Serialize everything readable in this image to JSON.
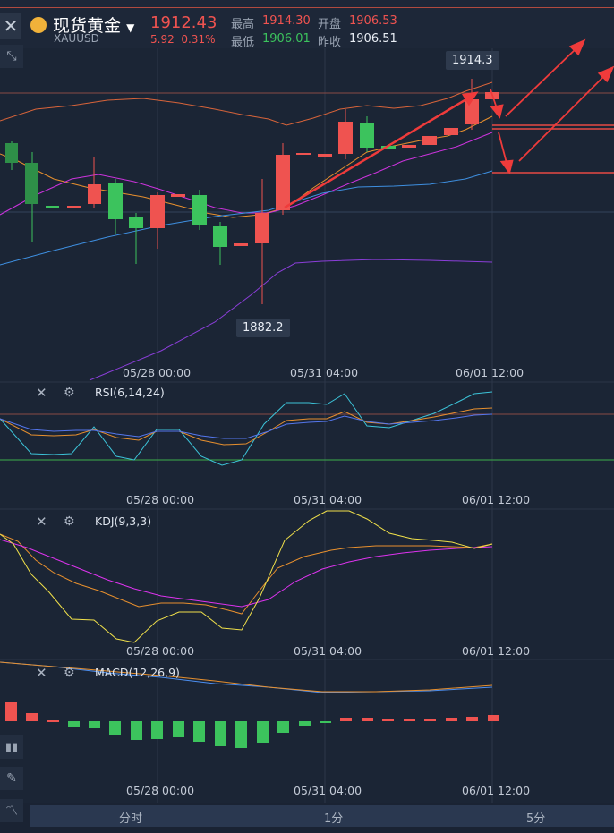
{
  "header": {
    "title": "现货黄金",
    "symbol": "XAUUSD",
    "price": "1912.43",
    "change": "5.92",
    "change_pct": "0.31%",
    "high_label": "最高",
    "high_value": "1914.30",
    "open_label": "开盘",
    "open_value": "1906.53",
    "low_label": "最低",
    "low_value": "1906.01",
    "prev_close_label": "昨收",
    "prev_close_value": "1906.51"
  },
  "main_chart": {
    "high_marker": "1914.3",
    "low_marker": "1882.2",
    "dates": [
      "05/28 00:00",
      "05/31 04:00",
      "06/01 12:00"
    ]
  },
  "indicators": {
    "rsi": {
      "label": "RSI(6,14,24)",
      "dates": [
        "05/28 00:00",
        "05/31 04:00",
        "06/01 12:00"
      ]
    },
    "kdj": {
      "label": "KDJ(9,3,3)",
      "dates": [
        "05/28 00:00",
        "05/31 04:00",
        "06/01 12:00"
      ]
    },
    "macd": {
      "label": "MACD(12,26,9)",
      "dates": [
        "05/28 00:00",
        "05/31 04:00",
        "06/01 12:00"
      ]
    }
  },
  "timeframes": [
    "分时",
    "1分",
    "5分"
  ],
  "colors": {
    "up": "#ef5350",
    "down": "#3cc35d",
    "accent": "#f0b23a",
    "background": "#1a2333"
  },
  "icons": {
    "close": "close-icon",
    "fullscreen": "collapse-icon",
    "drawing_tools": [
      "candles-icon",
      "pen-icon",
      "line-tool-icon"
    ]
  }
}
